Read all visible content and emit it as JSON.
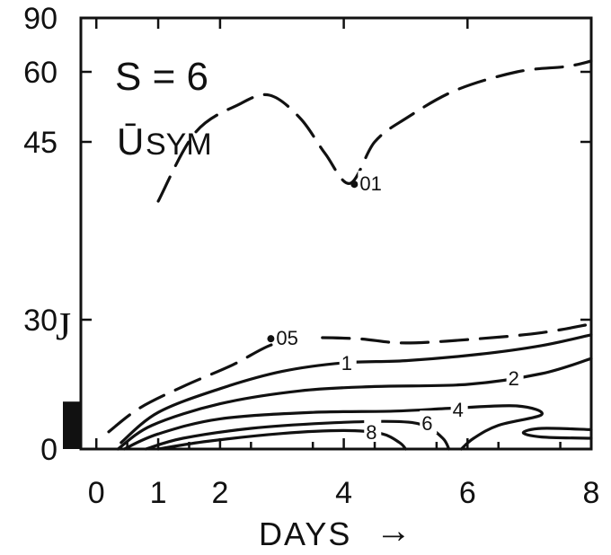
{
  "chart_data": {
    "type": "contour",
    "title": "S = 6",
    "subtitle": "Ū",
    "subtitle_sub": "SYM",
    "xlabel": "DAYS",
    "xlabel_arrow": "→",
    "ylabel": "",
    "xlim": [
      -0.25,
      8
    ],
    "y_ticks": [
      {
        "value": 0,
        "label": "0"
      },
      {
        "value": 30,
        "label": "30"
      },
      {
        "value": 45,
        "label": "45"
      },
      {
        "value": 60,
        "label": "60"
      },
      {
        "value": 90,
        "label": "90"
      }
    ],
    "x_ticks": [
      {
        "value": 0,
        "label": "0"
      },
      {
        "value": 1,
        "label": "1"
      },
      {
        "value": 2,
        "label": "2"
      },
      {
        "value": 4,
        "label": "4"
      },
      {
        "value": 6,
        "label": "6"
      },
      {
        "value": 8,
        "label": "8"
      }
    ],
    "jet_marker": "J",
    "forcing_bar": {
      "lat_min": 0,
      "lat_max": 11
    },
    "contours": [
      {
        "level": ".01",
        "style": "dashed",
        "points": [
          [
            1.0,
            40
          ],
          [
            1.6,
            47
          ],
          [
            2.3,
            53
          ],
          [
            2.8,
            55
          ],
          [
            3.3,
            50
          ],
          [
            3.7,
            44
          ],
          [
            4.1,
            41.5
          ],
          [
            4.5,
            45
          ],
          [
            5.0,
            50
          ],
          [
            5.8,
            56
          ],
          [
            6.8,
            60
          ],
          [
            7.6,
            63
          ],
          [
            8.0,
            66
          ]
        ]
      },
      {
        "level": ".05",
        "style": "dashed",
        "points": [
          [
            0.2,
            4
          ],
          [
            0.7,
            9.5
          ],
          [
            1.4,
            14.5
          ],
          [
            2.2,
            19.5
          ],
          [
            2.8,
            24
          ],
          [
            3.3,
            25.7
          ],
          [
            4.2,
            25.6
          ],
          [
            5.0,
            24.6
          ],
          [
            6.2,
            25.6
          ],
          [
            7.2,
            27
          ],
          [
            8.0,
            29
          ]
        ]
      },
      {
        "level": "1",
        "style": "solid",
        "points": [
          [
            0.4,
            1.5
          ],
          [
            1.0,
            8.5
          ],
          [
            2.0,
            14
          ],
          [
            3.0,
            18
          ],
          [
            4.0,
            20
          ],
          [
            5.0,
            20.5
          ],
          [
            6.2,
            22
          ],
          [
            7.2,
            24
          ],
          [
            8.0,
            26.5
          ]
        ]
      },
      {
        "level": "2",
        "style": "solid",
        "points": [
          [
            0.35,
            0
          ],
          [
            0.9,
            5.5
          ],
          [
            2.0,
            10.5
          ],
          [
            3.3,
            13.5
          ],
          [
            4.5,
            14.5
          ],
          [
            6.0,
            15
          ],
          [
            7.2,
            17.5
          ],
          [
            8.0,
            21
          ]
        ]
      },
      {
        "level": "4",
        "style": "solid",
        "points": [
          [
            0.45,
            0
          ],
          [
            1.0,
            3.5
          ],
          [
            2.0,
            7
          ],
          [
            3.5,
            8.5
          ],
          [
            4.8,
            8.8
          ],
          [
            5.8,
            9.5
          ],
          [
            6.8,
            10
          ],
          [
            7.2,
            8
          ],
          [
            6.5,
            5.5
          ],
          [
            6.1,
            2.5
          ],
          [
            5.9,
            0
          ]
        ]
      },
      {
        "level": "6",
        "style": "solid",
        "points": [
          [
            0.8,
            0
          ],
          [
            1.4,
            2.5
          ],
          [
            2.5,
            4.8
          ],
          [
            3.7,
            6
          ],
          [
            4.8,
            6.4
          ],
          [
            5.3,
            5.5
          ],
          [
            5.6,
            2.5
          ],
          [
            5.7,
            0
          ]
        ]
      },
      {
        "level": "8",
        "style": "solid",
        "points": [
          [
            1.0,
            0
          ],
          [
            1.8,
            1.8
          ],
          [
            3.0,
            3.6
          ],
          [
            4.0,
            4.3
          ],
          [
            4.6,
            3.6
          ],
          [
            4.9,
            1.5
          ],
          [
            5.0,
            0
          ]
        ]
      },
      {
        "level": "",
        "style": "solid",
        "points": [
          [
            8.0,
            4.5
          ],
          [
            7.2,
            4.8
          ],
          [
            6.9,
            3.8
          ],
          [
            7.2,
            2.8
          ],
          [
            8.0,
            2.5
          ]
        ]
      }
    ],
    "contour_labels": [
      {
        "text": ".01",
        "x": 4.2,
        "y": 41.5
      },
      {
        "text": ".05",
        "x": 2.85,
        "y": 25.8
      },
      {
        "text": "1",
        "x": 3.9,
        "y": 20
      },
      {
        "text": "2",
        "x": 6.6,
        "y": 16.5
      },
      {
        "text": "4",
        "x": 5.7,
        "y": 9.2
      },
      {
        "text": "6",
        "x": 5.2,
        "y": 6
      },
      {
        "text": "8",
        "x": 4.3,
        "y": 4
      }
    ],
    "colors": {
      "ink": "#111111",
      "background": "#ffffff"
    }
  }
}
